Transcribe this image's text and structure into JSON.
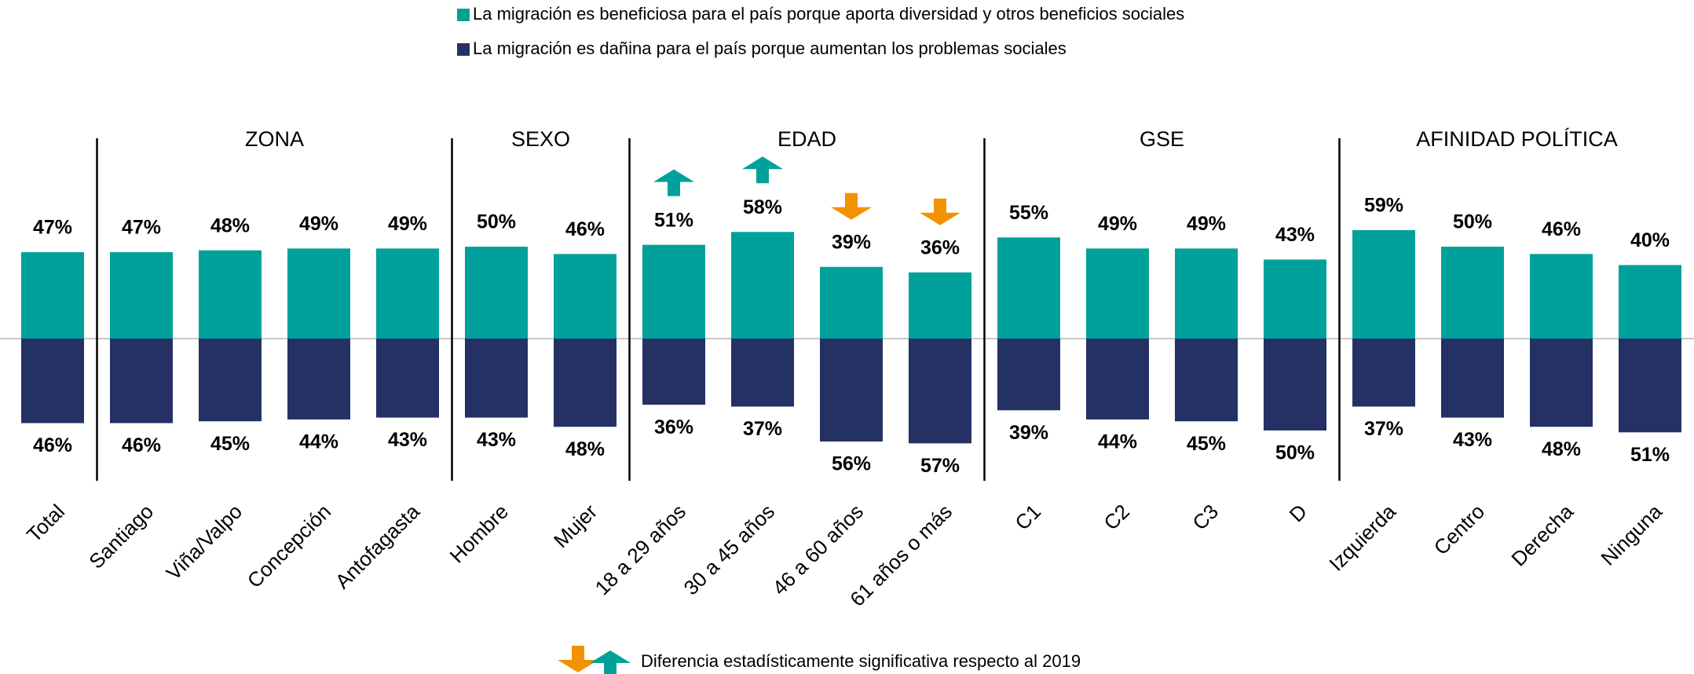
{
  "chart_data": {
    "type": "diverging_bar",
    "groups": [
      {
        "categories": [
          "Total"
        ]
      },
      {
        "name": "ZONA",
        "categories": [
          "Santiago",
          "Viña/Valpo",
          "Concepción",
          "Antofagasta"
        ]
      },
      {
        "name": "SEXO",
        "categories": [
          "Hombre",
          "Mujer"
        ]
      },
      {
        "name": "EDAD",
        "categories": [
          "18 a 29 años",
          "30 a 45 años",
          "46 a 60 años",
          "61 años o más"
        ]
      },
      {
        "name": "GSE",
        "categories": [
          "C1",
          "C2",
          "C3",
          "D"
        ]
      },
      {
        "name": "AFINIDAD POLÍTICA",
        "categories": [
          "Izquierda",
          "Centro",
          "Derecha",
          "Ninguna"
        ]
      }
    ],
    "series": [
      {
        "name": "La migración es beneficiosa para el país porque aporta diversidad y otros beneficios sociales",
        "color": "#00a19a",
        "direction": "up",
        "values": [
          47,
          47,
          48,
          49,
          49,
          50,
          46,
          51,
          58,
          39,
          36,
          55,
          49,
          49,
          43,
          59,
          50,
          46,
          40
        ],
        "value_labels": [
          "47%",
          "47%",
          "48%",
          "49%",
          "49%",
          "50%",
          "46%",
          "51%",
          "58%",
          "39%",
          "36%",
          "55%",
          "49%",
          "49%",
          "43%",
          "59%",
          "50%",
          "46%",
          "40%"
        ]
      },
      {
        "name": "La migración es dañina para el país porque aumentan los problemas sociales",
        "color": "#253165",
        "direction": "down",
        "values": [
          46,
          46,
          45,
          44,
          43,
          43,
          48,
          36,
          37,
          56,
          57,
          39,
          44,
          45,
          50,
          37,
          43,
          48,
          51
        ],
        "value_labels": [
          "46%",
          "46%",
          "45%",
          "44%",
          "43%",
          "43%",
          "48%",
          "36%",
          "37%",
          "56%",
          "57%",
          "39%",
          "44%",
          "45%",
          "50%",
          "37%",
          "43%",
          "48%",
          "51%"
        ]
      }
    ],
    "significance": [
      null,
      null,
      null,
      null,
      null,
      null,
      null,
      "up",
      "up",
      "down",
      "down",
      null,
      null,
      null,
      null,
      null,
      null,
      null,
      null
    ],
    "significance_colors": {
      "up": "#00a19a",
      "down": "#f39200"
    },
    "significance_note": "Diferencia estadísticamente significativa respecto al 2019"
  }
}
